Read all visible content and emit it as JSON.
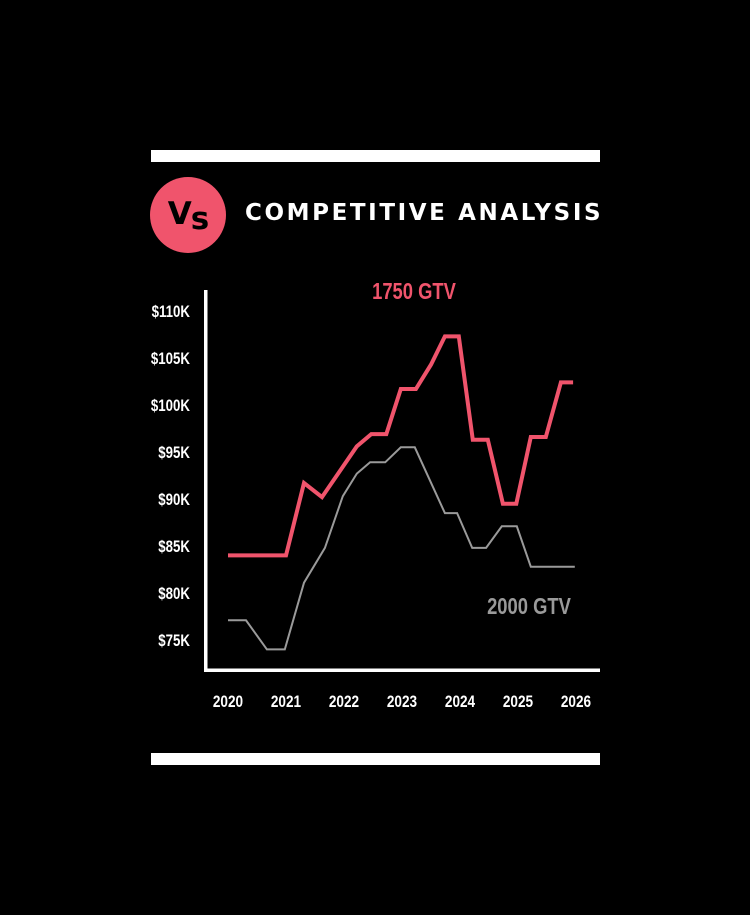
{
  "header": {
    "badge_text_v": "V",
    "badge_text_s": "s",
    "badge_color": "#f0546c",
    "title": "COMPETITIVE ANALYSIS"
  },
  "chart_data": {
    "type": "line",
    "title": "COMPETITIVE ANALYSIS",
    "xlabel": "",
    "ylabel": "",
    "x_ticks": [
      "2020",
      "2021",
      "2022",
      "2023",
      "2024",
      "2025",
      "2026"
    ],
    "y_ticks": [
      "$75K",
      "$80K",
      "$85K",
      "$90K",
      "$95K",
      "$100K",
      "$105K",
      "$110K"
    ],
    "ylim": [
      75,
      110
    ],
    "xlim": [
      2020,
      2026
    ],
    "grid": false,
    "legend": "inline labels",
    "series": [
      {
        "name": "1750 GTV",
        "color": "#f0546c",
        "x": [
          2020.0,
          2021.0,
          2021.31,
          2021.62,
          2022.22,
          2022.47,
          2022.73,
          2022.98,
          2023.24,
          2023.5,
          2023.74,
          2023.98,
          2024.22,
          2024.48,
          2024.74,
          2024.97,
          2025.22,
          2025.48,
          2025.74,
          2025.95
        ],
        "values": [
          84.0,
          84.0,
          91.7,
          90.2,
          95.6,
          96.9,
          96.9,
          101.7,
          101.7,
          104.3,
          107.3,
          107.3,
          96.3,
          96.3,
          89.5,
          89.5,
          96.6,
          96.6,
          102.4,
          102.4
        ]
      },
      {
        "name": "2000 GTV",
        "color": "#9a9a9a",
        "x": [
          2020.0,
          2020.31,
          2020.67,
          2020.98,
          2021.31,
          2021.67,
          2021.98,
          2022.22,
          2022.45,
          2022.71,
          2022.98,
          2023.22,
          2023.74,
          2023.95,
          2024.21,
          2024.45,
          2024.72,
          2024.98,
          2025.22,
          2025.98
        ],
        "values": [
          77.1,
          77.1,
          74.0,
          74.0,
          81.1,
          84.8,
          90.3,
          92.7,
          93.9,
          93.9,
          95.5,
          95.5,
          88.5,
          88.5,
          84.8,
          84.8,
          87.1,
          87.1,
          82.8,
          82.8
        ]
      }
    ]
  }
}
